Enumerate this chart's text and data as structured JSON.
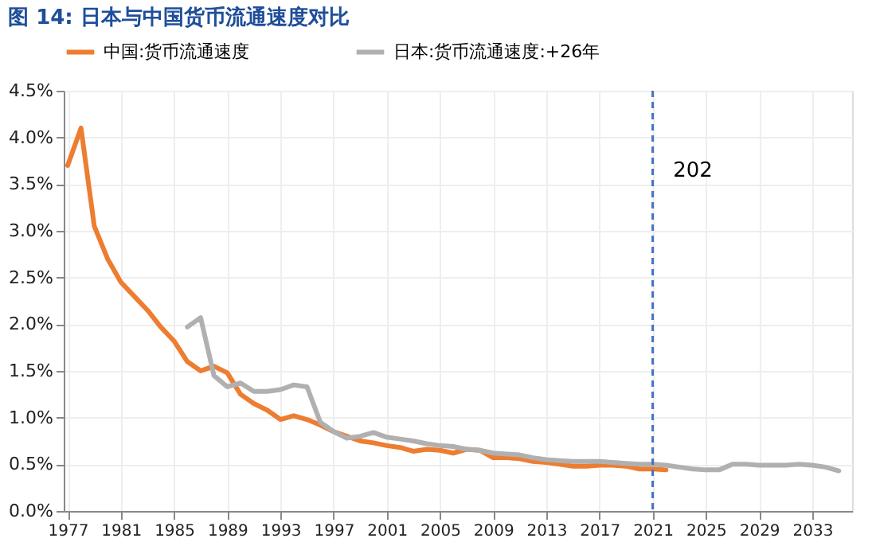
{
  "chart_data": {
    "type": "line",
    "title": "图 14: 日本与中国货币流通速度对比",
    "x": [
      1977,
      1978,
      1979,
      1980,
      1981,
      1982,
      1983,
      1984,
      1985,
      1986,
      1987,
      1988,
      1989,
      1990,
      1991,
      1992,
      1993,
      1994,
      1995,
      1996,
      1997,
      1998,
      1999,
      2000,
      2001,
      2002,
      2003,
      2004,
      2005,
      2006,
      2007,
      2008,
      2009,
      2010,
      2011,
      2012,
      2013,
      2014,
      2015,
      2016,
      2017,
      2018,
      2019,
      2020,
      2021,
      2022
    ],
    "series": [
      {
        "name": "中国:货币流通速度",
        "color": "#ed7d31",
        "values": [
          3.7,
          4.1,
          3.05,
          2.7,
          2.45,
          2.3,
          2.15,
          1.97,
          1.82,
          1.6,
          1.5,
          1.55,
          1.48,
          1.25,
          1.15,
          1.08,
          0.98,
          1.02,
          0.98,
          0.92,
          0.85,
          0.8,
          0.75,
          0.73,
          0.7,
          0.68,
          0.64,
          0.66,
          0.65,
          0.62,
          0.66,
          0.65,
          0.57,
          0.57,
          0.56,
          0.53,
          0.52,
          0.5,
          0.48,
          0.48,
          0.49,
          0.49,
          0.48,
          0.45,
          0.45,
          0.44
        ]
      },
      {
        "name": "日本:货币流通速度:+26年",
        "color": "#b0b0b0",
        "x": [
          1986,
          1987,
          1988,
          1989,
          1990,
          1991,
          1992,
          1993,
          1994,
          1995,
          1996,
          1997,
          1998,
          1999,
          2000,
          2001,
          2002,
          2003,
          2004,
          2005,
          2006,
          2007,
          2008,
          2009,
          2010,
          2011,
          2012,
          2013,
          2014,
          2015,
          2016,
          2017,
          2018,
          2019,
          2020,
          2021,
          2022,
          2023,
          2024,
          2025,
          2026,
          2027,
          2028,
          2029,
          2030,
          2031,
          2032,
          2033,
          2034,
          2035
        ],
        "values": [
          1.97,
          2.07,
          1.45,
          1.33,
          1.37,
          1.28,
          1.28,
          1.3,
          1.35,
          1.33,
          0.95,
          0.85,
          0.78,
          0.8,
          0.84,
          0.79,
          0.77,
          0.75,
          0.72,
          0.7,
          0.69,
          0.66,
          0.65,
          0.62,
          0.61,
          0.6,
          0.57,
          0.55,
          0.54,
          0.53,
          0.53,
          0.53,
          0.52,
          0.51,
          0.5,
          0.5,
          0.49,
          0.47,
          0.45,
          0.44,
          0.44,
          0.5,
          0.5,
          0.49,
          0.49,
          0.49,
          0.5,
          0.49,
          0.47,
          0.43
        ]
      }
    ],
    "xlim": [
      1976.7,
      2036
    ],
    "xticks": [
      1977,
      1981,
      1985,
      1989,
      1993,
      1997,
      2001,
      2005,
      2009,
      2013,
      2017,
      2021,
      2025,
      2029,
      2033
    ],
    "ylim": [
      0,
      4.5
    ],
    "yticks": [
      {
        "value": 0,
        "label": "0.0%"
      },
      {
        "value": 0.5,
        "label": "0.5%"
      },
      {
        "value": 1,
        "label": "1.0%"
      },
      {
        "value": 1.5,
        "label": "1.5%"
      },
      {
        "value": 2,
        "label": "2.0%"
      },
      {
        "value": 2.5,
        "label": "2.5%"
      },
      {
        "value": 3,
        "label": "3.0%"
      },
      {
        "value": 3.5,
        "label": "3.5%"
      },
      {
        "value": 4,
        "label": "4.0%"
      },
      {
        "value": 4.5,
        "label": "4.5%"
      }
    ],
    "ref_lines": [
      {
        "axis": "x",
        "value": 2021,
        "color": "#4472c4",
        "line_style": "dashed"
      }
    ],
    "annotations": [
      "202"
    ],
    "grid": true,
    "legend": "top",
    "line_style": "solid",
    "marker": "none"
  }
}
